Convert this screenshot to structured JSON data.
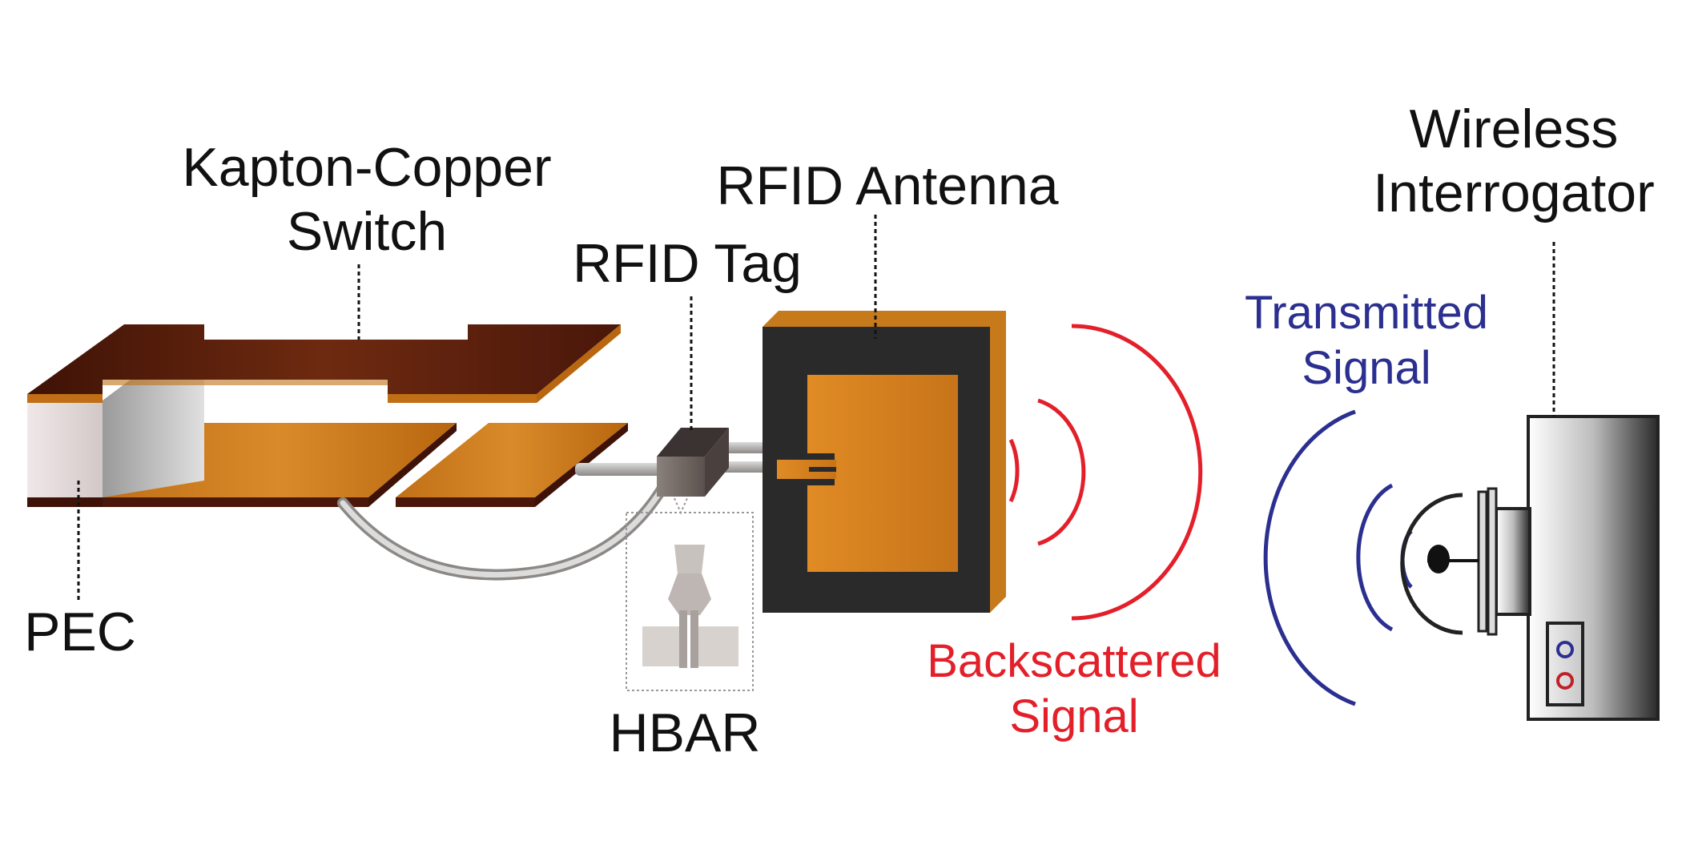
{
  "labels": {
    "kapton_line1": "Kapton-Copper",
    "kapton_line2": "Switch",
    "rfid_tag": "RFID Tag",
    "rfid_antenna": "RFID Antenna",
    "wireless_line1": "Wireless",
    "wireless_line2": "Interrogator",
    "transmitted_line1": "Transmitted",
    "transmitted_line2": "Signal",
    "backscattered_line1": "Backscattered",
    "backscattered_line2": "Signal",
    "pec": "PEC",
    "hbar": "HBAR"
  },
  "colors": {
    "copper": "#c77a1c",
    "copper_dark": "#5a1e0c",
    "backscatter": "#e3202a",
    "transmit": "#2b2f8f",
    "antenna_substrate": "#2a2a2a"
  }
}
